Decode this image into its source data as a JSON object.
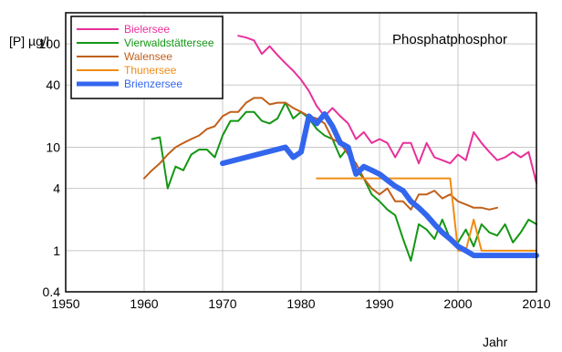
{
  "chart_data": {
    "type": "line",
    "title": "Phosphatphosphor",
    "xlabel": "Jahr",
    "ylabel": "[P] µg/l",
    "xlim": [
      1950,
      2010
    ],
    "ylim": [
      0.4,
      200
    ],
    "yscale": "log",
    "grid": true,
    "legend_position": "top-left",
    "x_ticks": [
      "1950",
      "1960",
      "1970",
      "1980",
      "1990",
      "2000",
      "2010"
    ],
    "y_ticks": [
      "0.4",
      "1",
      "4",
      "10",
      "40",
      "100"
    ],
    "y_tick_values": [
      0.4,
      1,
      4,
      10,
      40,
      100
    ],
    "series": [
      {
        "name": "Bielersee",
        "color": "#e8309a",
        "points": [
          [
            1972,
            120
          ],
          [
            1973,
            115
          ],
          [
            1974,
            108
          ],
          [
            1975,
            80
          ],
          [
            1976,
            95
          ],
          [
            1977,
            78
          ],
          [
            1978,
            65
          ],
          [
            1979,
            55
          ],
          [
            1980,
            45
          ],
          [
            1981,
            35
          ],
          [
            1982,
            25
          ],
          [
            1983,
            20
          ],
          [
            1984,
            24
          ],
          [
            1985,
            20
          ],
          [
            1986,
            17
          ],
          [
            1987,
            12
          ],
          [
            1988,
            14
          ],
          [
            1989,
            11
          ],
          [
            1990,
            12
          ],
          [
            1991,
            11
          ],
          [
            1992,
            8
          ],
          [
            1993,
            11
          ],
          [
            1994,
            11
          ],
          [
            1995,
            7
          ],
          [
            1996,
            11
          ],
          [
            1997,
            8
          ],
          [
            1998,
            7.5
          ],
          [
            1999,
            7
          ],
          [
            2000,
            8.5
          ],
          [
            2001,
            7.5
          ],
          [
            2002,
            14
          ],
          [
            2003,
            11
          ],
          [
            2004,
            9
          ],
          [
            2005,
            7.5
          ],
          [
            2006,
            8
          ],
          [
            2007,
            9
          ],
          [
            2008,
            8
          ],
          [
            2009,
            9
          ],
          [
            2010,
            4.5
          ]
        ]
      },
      {
        "name": "Vierwaldstättersee",
        "color": "#149614",
        "points": [
          [
            1961,
            12
          ],
          [
            1962,
            12.5
          ],
          [
            1963,
            4
          ],
          [
            1964,
            6.5
          ],
          [
            1965,
            6
          ],
          [
            1966,
            8.5
          ],
          [
            1967,
            9.5
          ],
          [
            1968,
            9.5
          ],
          [
            1969,
            8
          ],
          [
            1970,
            13
          ],
          [
            1971,
            18
          ],
          [
            1972,
            18
          ],
          [
            1973,
            22
          ],
          [
            1974,
            22
          ],
          [
            1975,
            18
          ],
          [
            1976,
            17
          ],
          [
            1977,
            19
          ],
          [
            1978,
            27
          ],
          [
            1979,
            19
          ],
          [
            1980,
            22
          ],
          [
            1981,
            19
          ],
          [
            1982,
            15
          ],
          [
            1983,
            13
          ],
          [
            1984,
            12
          ],
          [
            1985,
            8
          ],
          [
            1986,
            10
          ],
          [
            1987,
            6
          ],
          [
            1988,
            5
          ],
          [
            1989,
            3.5
          ],
          [
            1990,
            3
          ],
          [
            1991,
            2.5
          ],
          [
            1992,
            2.2
          ],
          [
            1993,
            1.3
          ],
          [
            1994,
            0.8
          ],
          [
            1995,
            1.8
          ],
          [
            1996,
            1.6
          ],
          [
            1997,
            1.3
          ],
          [
            1998,
            2
          ],
          [
            1999,
            1.3
          ],
          [
            2000,
            1.2
          ],
          [
            2001,
            1.6
          ],
          [
            2002,
            1.1
          ],
          [
            2003,
            1.8
          ],
          [
            2004,
            1.5
          ],
          [
            2005,
            1.4
          ],
          [
            2006,
            1.8
          ],
          [
            2007,
            1.2
          ],
          [
            2008,
            1.5
          ],
          [
            2009,
            2
          ],
          [
            2010,
            1.8
          ]
        ]
      },
      {
        "name": "Walensee",
        "color": "#c0601a",
        "points": [
          [
            1960,
            5
          ],
          [
            1961,
            6
          ],
          [
            1962,
            7
          ],
          [
            1963,
            8.5
          ],
          [
            1964,
            10
          ],
          [
            1965,
            11
          ],
          [
            1966,
            12
          ],
          [
            1967,
            13
          ],
          [
            1968,
            15
          ],
          [
            1969,
            16
          ],
          [
            1970,
            20
          ],
          [
            1971,
            22
          ],
          [
            1972,
            22
          ],
          [
            1973,
            27
          ],
          [
            1974,
            30
          ],
          [
            1975,
            30
          ],
          [
            1976,
            26
          ],
          [
            1977,
            27
          ],
          [
            1978,
            27
          ],
          [
            1979,
            24
          ],
          [
            1980,
            22
          ],
          [
            1981,
            20
          ],
          [
            1982,
            19
          ],
          [
            1983,
            17
          ],
          [
            1984,
            12
          ],
          [
            1985,
            11
          ],
          [
            1986,
            8.5
          ],
          [
            1987,
            7
          ],
          [
            1988,
            5
          ],
          [
            1989,
            4
          ],
          [
            1990,
            3.5
          ],
          [
            1991,
            4
          ],
          [
            1992,
            3
          ],
          [
            1993,
            3
          ],
          [
            1994,
            2.5
          ],
          [
            1995,
            3.5
          ],
          [
            1996,
            3.5
          ],
          [
            1997,
            3.8
          ],
          [
            1998,
            3.2
          ],
          [
            1999,
            3.5
          ],
          [
            2000,
            3
          ],
          [
            2001,
            2.8
          ],
          [
            2002,
            2.6
          ],
          [
            2003,
            2.6
          ],
          [
            2004,
            2.5
          ],
          [
            2005,
            2.6
          ]
        ]
      },
      {
        "name": "Thunersee",
        "color": "#f08c14",
        "points": [
          [
            1982,
            5
          ],
          [
            1999,
            5
          ],
          [
            2000,
            1
          ],
          [
            2001,
            1
          ],
          [
            2002,
            2
          ],
          [
            2003,
            1
          ],
          [
            2004,
            1
          ],
          [
            2010,
            1
          ]
        ]
      },
      {
        "name": "Brienzersee",
        "color": "#3366ee",
        "points": [
          [
            1970,
            7
          ],
          [
            1978,
            10
          ],
          [
            1979,
            8
          ],
          [
            1980,
            9
          ],
          [
            1981,
            20
          ],
          [
            1982,
            17
          ],
          [
            1983,
            21
          ],
          [
            1984,
            16
          ],
          [
            1985,
            11
          ],
          [
            1986,
            10
          ],
          [
            1987,
            5.5
          ],
          [
            1988,
            6.5
          ],
          [
            1989,
            6
          ],
          [
            1990,
            5.5
          ],
          [
            1991,
            4.8
          ],
          [
            1992,
            4.2
          ],
          [
            1993,
            3.8
          ],
          [
            1994,
            3
          ],
          [
            1995,
            2.6
          ],
          [
            1996,
            2.2
          ],
          [
            1997,
            1.8
          ],
          [
            1998,
            1.5
          ],
          [
            1999,
            1.3
          ],
          [
            2000,
            1.1
          ],
          [
            2001,
            1
          ],
          [
            2002,
            0.9
          ],
          [
            2010,
            0.9
          ]
        ]
      }
    ]
  }
}
